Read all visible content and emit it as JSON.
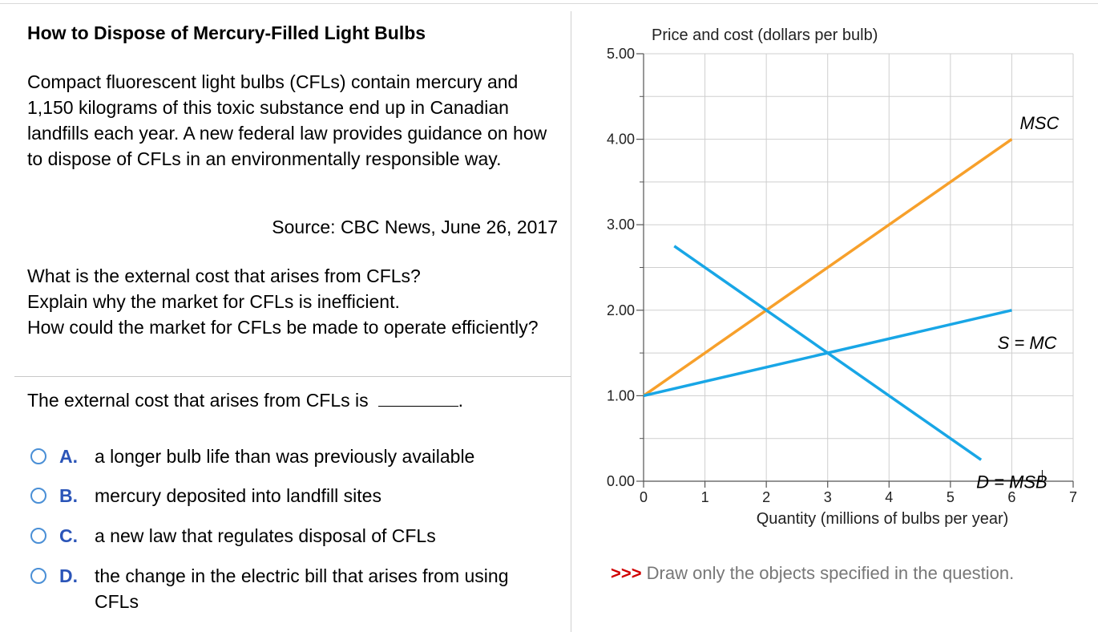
{
  "left_panel": {
    "title": "How to Dispose of Mercury-Filled Light Bulbs",
    "article": "Compact fluorescent light bulbs (CFLs) contain mercury and 1,150 kilograms of this toxic substance end up in Canadian landfills each year. A new federal law provides guidance on how to dispose of CFLs in an environmentally responsible way.",
    "source": "Source: CBC News, June 26, 2017",
    "questions": [
      "What is the external cost that arises from CFLs?",
      "Explain why the market for CFLs is inefficient.",
      "How could the market for CFLs be made to operate efficiently?"
    ],
    "prompt": "The external cost that arises from CFLs is",
    "prompt_end": ".",
    "options": [
      {
        "letter": "A.",
        "text": "a longer bulb life than was previously available"
      },
      {
        "letter": "B.",
        "text": "mercury deposited into landfill sites"
      },
      {
        "letter": "C.",
        "text": "a new law that regulates disposal of CFLs"
      },
      {
        "letter": "D.",
        "text": "the change in the electric bill that arises from using CFLs"
      }
    ],
    "radio_color": "#4a8fd6",
    "letter_color": "#2b55b8"
  },
  "instruction": {
    "arrows": ">>>",
    "text": "Draw only the objects specified in the question."
  },
  "chart_data": {
    "type": "line",
    "ylabel": "Price and cost (dollars per bulb)",
    "xlabel": "Quantity (millions of bulbs per year)",
    "xlim": [
      0,
      7
    ],
    "ylim": [
      0,
      5
    ],
    "x_ticks": [
      "0",
      "1",
      "2",
      "3",
      "4",
      "5",
      "6",
      "7"
    ],
    "y_ticks": [
      "0.00",
      "1.00",
      "2.00",
      "3.00",
      "4.00",
      "5.00"
    ],
    "grid": true,
    "series": [
      {
        "name": "MSC",
        "color": "#f7a02b",
        "x": [
          0,
          6
        ],
        "y": [
          1.0,
          4.0
        ]
      },
      {
        "name": "S = MC",
        "color": "#18a6e6",
        "x": [
          0,
          6
        ],
        "y": [
          1.0,
          2.0
        ]
      },
      {
        "name": "D = MSB",
        "color": "#18a6e6",
        "x": [
          0.5,
          5.5
        ],
        "y": [
          2.75,
          0.25
        ]
      }
    ]
  }
}
